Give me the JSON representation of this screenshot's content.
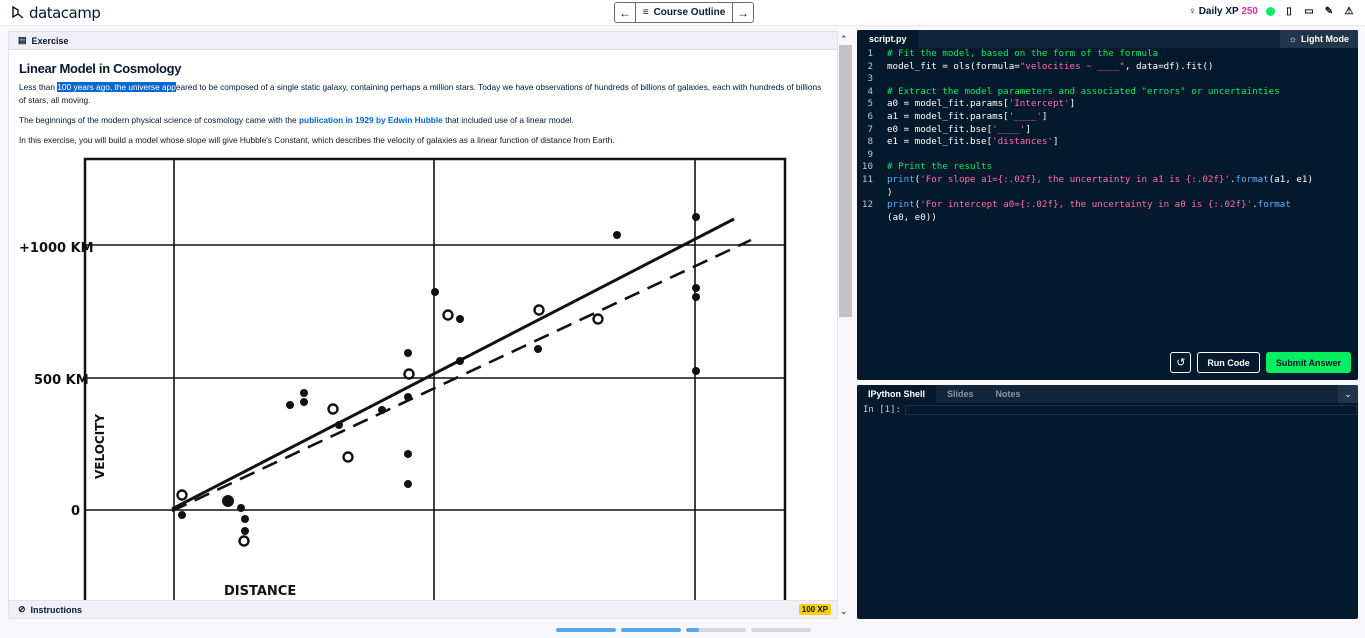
{
  "app": {
    "logo_text": "datacamp"
  },
  "nav": {
    "outline_label": "Course Outline",
    "prev_icon": "arrow-left-icon",
    "next_icon": "arrow-right-icon"
  },
  "header_right": {
    "xp_label": "Daily XP",
    "xp_value": "250",
    "status_color": "#03ef62"
  },
  "exercise": {
    "section_label": "Exercise",
    "title": "Linear Model in Cosmology",
    "p1_before": "Less than ",
    "p1_highlight": "100 years ago, the universe app",
    "p1_after": "eared to be composed of a single static galaxy, containing perhaps a million stars. Today we have observations of hundreds of billions of galaxies, each with hundreds of billions of stars, all moving.",
    "p2_before": "The beginnings of the modern physical science of cosmology came with the ",
    "p2_link": "publication in 1929 by Edwin Hubble",
    "p2_after": " that included use of a linear model.",
    "p3": "In this exercise, you will build a model whose slope will give Hubble's Constant, which describes the velocity of galaxies as a linear function of distance from Earth.",
    "figure": {
      "y_ticks": [
        "+1000 KM",
        "500 KM",
        "0"
      ],
      "y_label": "VELOCITY",
      "x_label": "DISTANCE"
    },
    "instructions_label": "Instructions",
    "xp_badge": "100 XP"
  },
  "editor": {
    "tab": "script.py",
    "light_mode": "Light Mode",
    "lines": [
      {
        "n": "1",
        "parts": [
          {
            "t": "# Fit the model, based on the form of the formula",
            "c": "com"
          }
        ]
      },
      {
        "n": "2",
        "parts": [
          {
            "t": "model_fit = ols(formula=",
            "c": ""
          },
          {
            "t": "\"velocities ~ ____\"",
            "c": "str"
          },
          {
            "t": ", data=df).fit()",
            "c": ""
          }
        ]
      },
      {
        "n": "3",
        "parts": []
      },
      {
        "n": "4",
        "parts": [
          {
            "t": "# Extract the model parameters and associated \"errors\" or uncertainties",
            "c": "com"
          }
        ]
      },
      {
        "n": "5",
        "parts": [
          {
            "t": "a0 = model_fit.params[",
            "c": ""
          },
          {
            "t": "'Intercept'",
            "c": "str"
          },
          {
            "t": "]",
            "c": ""
          }
        ]
      },
      {
        "n": "6",
        "parts": [
          {
            "t": "a1 = model_fit.params[",
            "c": ""
          },
          {
            "t": "'____'",
            "c": "str"
          },
          {
            "t": "]",
            "c": ""
          }
        ]
      },
      {
        "n": "7",
        "parts": [
          {
            "t": "e0 = model_fit.bse[",
            "c": ""
          },
          {
            "t": "'____'",
            "c": "str"
          },
          {
            "t": "]",
            "c": ""
          }
        ]
      },
      {
        "n": "8",
        "parts": [
          {
            "t": "e1 = model_fit.bse[",
            "c": ""
          },
          {
            "t": "'distances'",
            "c": "str"
          },
          {
            "t": "]",
            "c": ""
          }
        ]
      },
      {
        "n": "9",
        "parts": []
      },
      {
        "n": "10",
        "parts": [
          {
            "t": "# Print the results",
            "c": "com"
          }
        ]
      },
      {
        "n": "11",
        "parts": [
          {
            "t": "print",
            "c": "fn"
          },
          {
            "t": "(",
            "c": ""
          },
          {
            "t": "'For slope a1={:.02f}, the uncertainty in a1 is {:.02f}'",
            "c": "str"
          },
          {
            "t": ".",
            "c": ""
          },
          {
            "t": "format",
            "c": "fn"
          },
          {
            "t": "(a1, e1)",
            "c": ""
          }
        ]
      },
      {
        "n": "",
        "parts": [
          {
            "t": ")",
            "c": ""
          }
        ]
      },
      {
        "n": "12",
        "parts": [
          {
            "t": "print",
            "c": "fn"
          },
          {
            "t": "(",
            "c": ""
          },
          {
            "t": "'For intercept a0={:.02f}, the uncertainty in a0 is {:.02f}'",
            "c": "str"
          },
          {
            "t": ".",
            "c": ""
          },
          {
            "t": "format",
            "c": "fn"
          }
        ]
      },
      {
        "n": "",
        "parts": [
          {
            "t": "(a0, e0))",
            "c": ""
          }
        ]
      }
    ],
    "run_label": "Run Code",
    "submit_label": "Submit Answer"
  },
  "shell": {
    "tabs": [
      "IPython Shell",
      "Slides",
      "Notes"
    ],
    "prompt": "In [1]:"
  },
  "progress": [
    1,
    1,
    0.22,
    0
  ]
}
